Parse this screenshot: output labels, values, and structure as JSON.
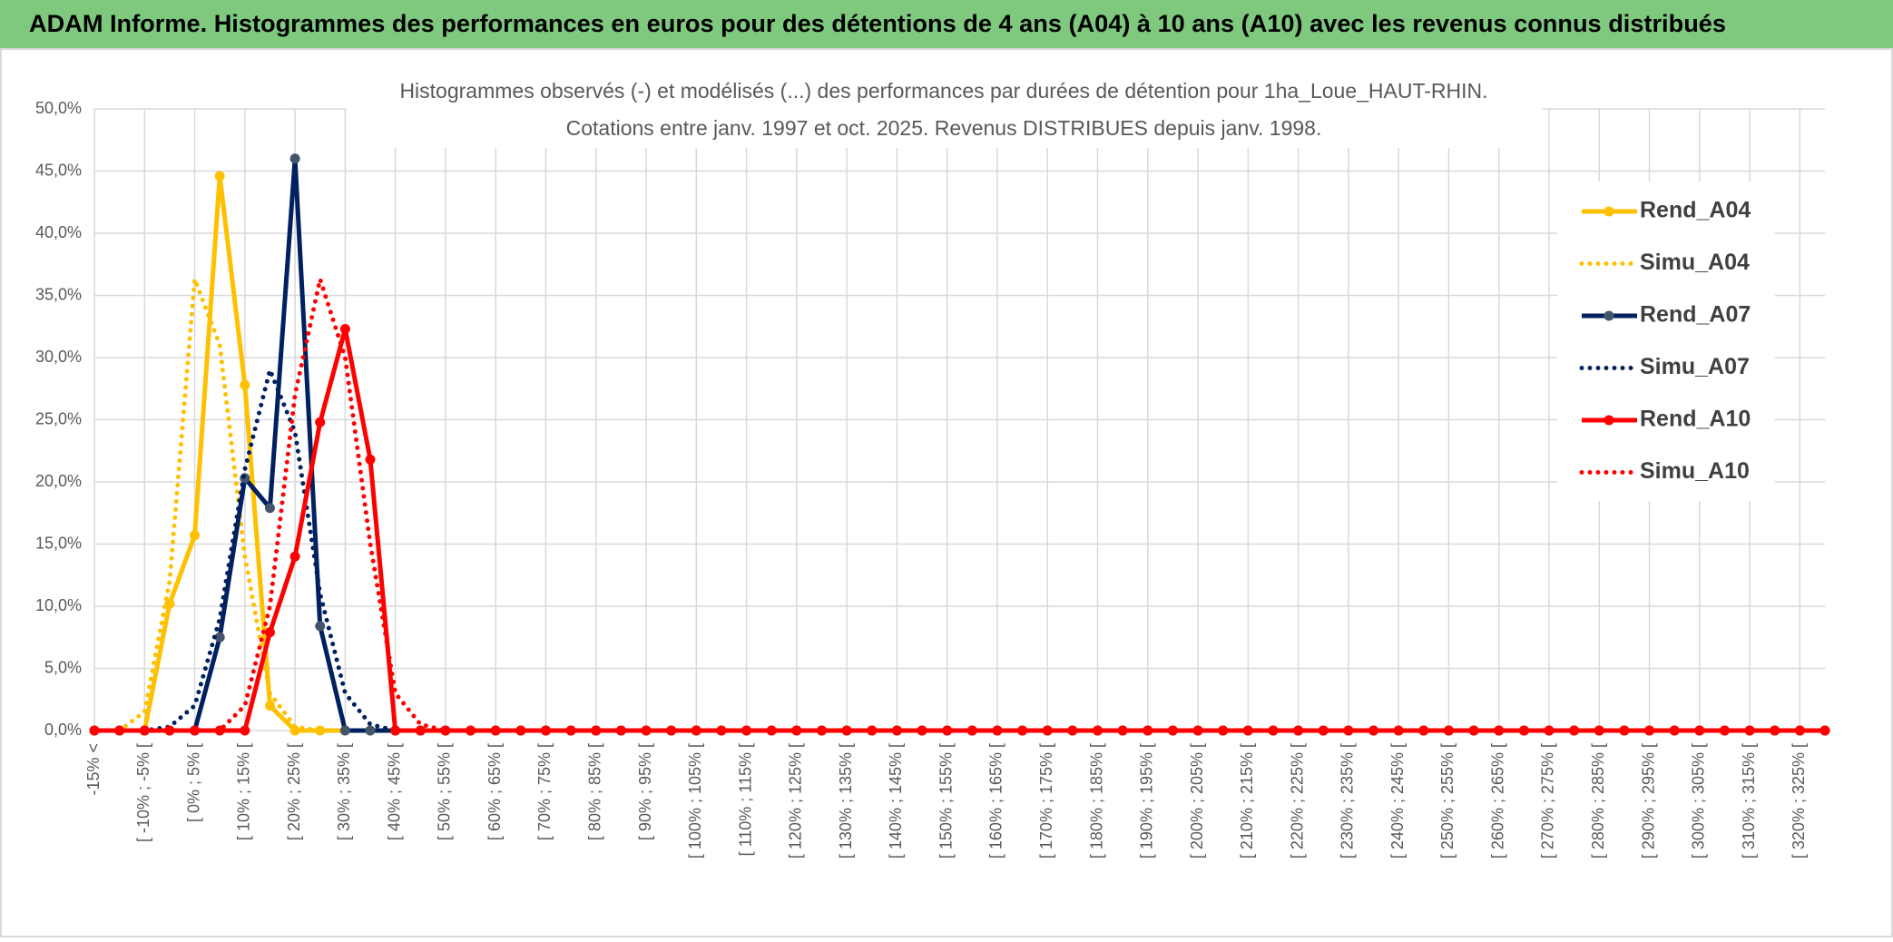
{
  "header": {
    "title": "ADAM Informe. Histogrammes des performances en euros pour des détentions de 4 ans (A04) à 10 ans (A10) avec les revenus connus distribués"
  },
  "chart_data": {
    "type": "line",
    "title": "Histogrammes observés (-) et modélisés (...) des performances par durées de détention pour 1ha_Loue_HAUT-RHIN.",
    "subtitle": "Cotations entre janv. 1997 et oct. 2025. Revenus DISTRIBUES depuis janv. 1998.",
    "categories": [
      "-15% <",
      null,
      "[ -10% ; -5% [",
      null,
      "[ 0% ; 5% [",
      null,
      "[ 10% ; 15% [",
      null,
      "[ 20% ; 25% [",
      null,
      "[ 30% ; 35% [",
      null,
      "[ 40% ; 45% [",
      null,
      "[ 50% ; 55% [",
      null,
      "[ 60% ; 65% [",
      null,
      "[ 70% ; 75% [",
      null,
      "[ 80% ; 85% [",
      null,
      "[ 90% ; 95% [",
      null,
      "[ 100% ; 105% [",
      null,
      "[ 110% ; 115% [",
      null,
      "[ 120% ; 125% [",
      null,
      "[ 130% ; 135% [",
      null,
      "[ 140% ; 145% [",
      null,
      "[ 150% ; 155% [",
      null,
      "[ 160% ; 165% [",
      null,
      "[ 170% ; 175% [",
      null,
      "[ 180% ; 185% [",
      null,
      "[ 190% ; 195% [",
      null,
      "[ 200% ; 205% [",
      null,
      "[ 210% ; 215% [",
      null,
      "[ 220% ; 225% [",
      null,
      "[ 230% ; 235% [",
      null,
      "[ 240% ; 245% [",
      null,
      "[ 250% ; 255% [",
      null,
      "[ 260% ; 265% [",
      null,
      "[ 270% ; 275% [",
      null,
      "[ 280% ; 285% [",
      null,
      "[ 290% ; 295% [",
      null,
      "[ 300% ; 305% [",
      null,
      "[ 310% ; 315% [",
      null,
      "[ 320% ; 325% [",
      null
    ],
    "series": [
      {
        "name": "Rend_A04",
        "color": "#FFC000",
        "line_style": "solid",
        "markers": true,
        "marker_color": "#FFC000",
        "values": [
          0,
          0,
          0,
          10.2,
          15.7,
          44.6,
          27.8,
          2,
          0,
          0,
          0,
          0,
          0,
          0,
          0,
          0,
          0,
          0,
          0,
          0,
          0,
          0,
          0,
          0,
          0,
          0,
          0,
          0,
          0,
          0,
          0,
          0,
          0,
          0,
          0,
          0,
          0,
          0,
          0,
          0,
          0,
          0,
          0,
          0,
          0,
          0,
          0,
          0,
          0,
          0,
          0,
          0,
          0,
          0,
          0,
          0,
          0,
          0,
          0,
          0,
          0,
          0,
          0,
          0,
          0,
          0,
          0,
          0,
          0,
          0
        ]
      },
      {
        "name": "Simu_A04",
        "color": "#FFC000",
        "line_style": "dotted",
        "markers": false,
        "values": [
          0,
          0,
          1.5,
          12,
          36.3,
          31,
          14,
          3,
          0.3,
          0,
          0,
          0,
          0,
          0,
          0,
          0,
          0,
          0,
          0,
          0,
          0,
          0,
          0,
          0,
          0,
          0,
          0,
          0,
          0,
          0,
          0,
          0,
          0,
          0,
          0,
          0,
          0,
          0,
          0,
          0,
          0,
          0,
          0,
          0,
          0,
          0,
          0,
          0,
          0,
          0,
          0,
          0,
          0,
          0,
          0,
          0,
          0,
          0,
          0,
          0,
          0,
          0,
          0,
          0,
          0,
          0,
          0,
          0,
          0,
          0
        ]
      },
      {
        "name": "Rend_A07",
        "color": "#002060",
        "line_style": "solid",
        "markers": true,
        "marker_color": "#44546A",
        "values": [
          0,
          0,
          0,
          0,
          0,
          7.5,
          20.3,
          17.9,
          46,
          8.4,
          0,
          0,
          0,
          0,
          0,
          0,
          0,
          0,
          0,
          0,
          0,
          0,
          0,
          0,
          0,
          0,
          0,
          0,
          0,
          0,
          0,
          0,
          0,
          0,
          0,
          0,
          0,
          0,
          0,
          0,
          0,
          0,
          0,
          0,
          0,
          0,
          0,
          0,
          0,
          0,
          0,
          0,
          0,
          0,
          0,
          0,
          0,
          0,
          0,
          0,
          0,
          0,
          0,
          0,
          0,
          0,
          0,
          0,
          0,
          0
        ]
      },
      {
        "name": "Simu_A07",
        "color": "#002060",
        "line_style": "dotted",
        "markers": false,
        "values": [
          0,
          0,
          0,
          0.3,
          2,
          9,
          21,
          29,
          24,
          11,
          3,
          0.5,
          0,
          0,
          0,
          0,
          0,
          0,
          0,
          0,
          0,
          0,
          0,
          0,
          0,
          0,
          0,
          0,
          0,
          0,
          0,
          0,
          0,
          0,
          0,
          0,
          0,
          0,
          0,
          0,
          0,
          0,
          0,
          0,
          0,
          0,
          0,
          0,
          0,
          0,
          0,
          0,
          0,
          0,
          0,
          0,
          0,
          0,
          0,
          0,
          0,
          0,
          0,
          0,
          0,
          0,
          0,
          0,
          0,
          0
        ]
      },
      {
        "name": "Rend_A10",
        "color": "#FF0000",
        "line_style": "solid",
        "markers": true,
        "marker_color": "#FF0000",
        "values": [
          0,
          0,
          0,
          0,
          0,
          0,
          0,
          7.9,
          14,
          24.8,
          32.3,
          21.8,
          0,
          0,
          0,
          0,
          0,
          0,
          0,
          0,
          0,
          0,
          0,
          0,
          0,
          0,
          0,
          0,
          0,
          0,
          0,
          0,
          0,
          0,
          0,
          0,
          0,
          0,
          0,
          0,
          0,
          0,
          0,
          0,
          0,
          0,
          0,
          0,
          0,
          0,
          0,
          0,
          0,
          0,
          0,
          0,
          0,
          0,
          0,
          0,
          0,
          0,
          0,
          0,
          0,
          0,
          0,
          0,
          0,
          0
        ]
      },
      {
        "name": "Simu_A10",
        "color": "#FF0000",
        "line_style": "dotted",
        "markers": false,
        "values": [
          0,
          0,
          0,
          0,
          0,
          0,
          2,
          10,
          27,
          36.3,
          30,
          15,
          3,
          0.5,
          0,
          0,
          0,
          0,
          0,
          0,
          0,
          0,
          0,
          0,
          0,
          0,
          0,
          0,
          0,
          0,
          0,
          0,
          0,
          0,
          0,
          0,
          0,
          0,
          0,
          0,
          0,
          0,
          0,
          0,
          0,
          0,
          0,
          0,
          0,
          0,
          0,
          0,
          0,
          0,
          0,
          0,
          0,
          0,
          0,
          0,
          0,
          0,
          0,
          0,
          0,
          0,
          0,
          0,
          0,
          0
        ]
      }
    ],
    "ylim": [
      0,
      50
    ],
    "yticks": [
      {
        "value": 0,
        "label": "0,0%"
      },
      {
        "value": 5,
        "label": "5,0%"
      },
      {
        "value": 10,
        "label": "10,0%"
      },
      {
        "value": 15,
        "label": "15,0%"
      },
      {
        "value": 20,
        "label": "20,0%"
      },
      {
        "value": 25,
        "label": "25,0%"
      },
      {
        "value": 30,
        "label": "30,0%"
      },
      {
        "value": 35,
        "label": "35,0%"
      },
      {
        "value": 40,
        "label": "40,0%"
      },
      {
        "value": 45,
        "label": "45,0%"
      },
      {
        "value": 50,
        "label": "50,0%"
      }
    ],
    "grid": true,
    "legend": "right"
  }
}
